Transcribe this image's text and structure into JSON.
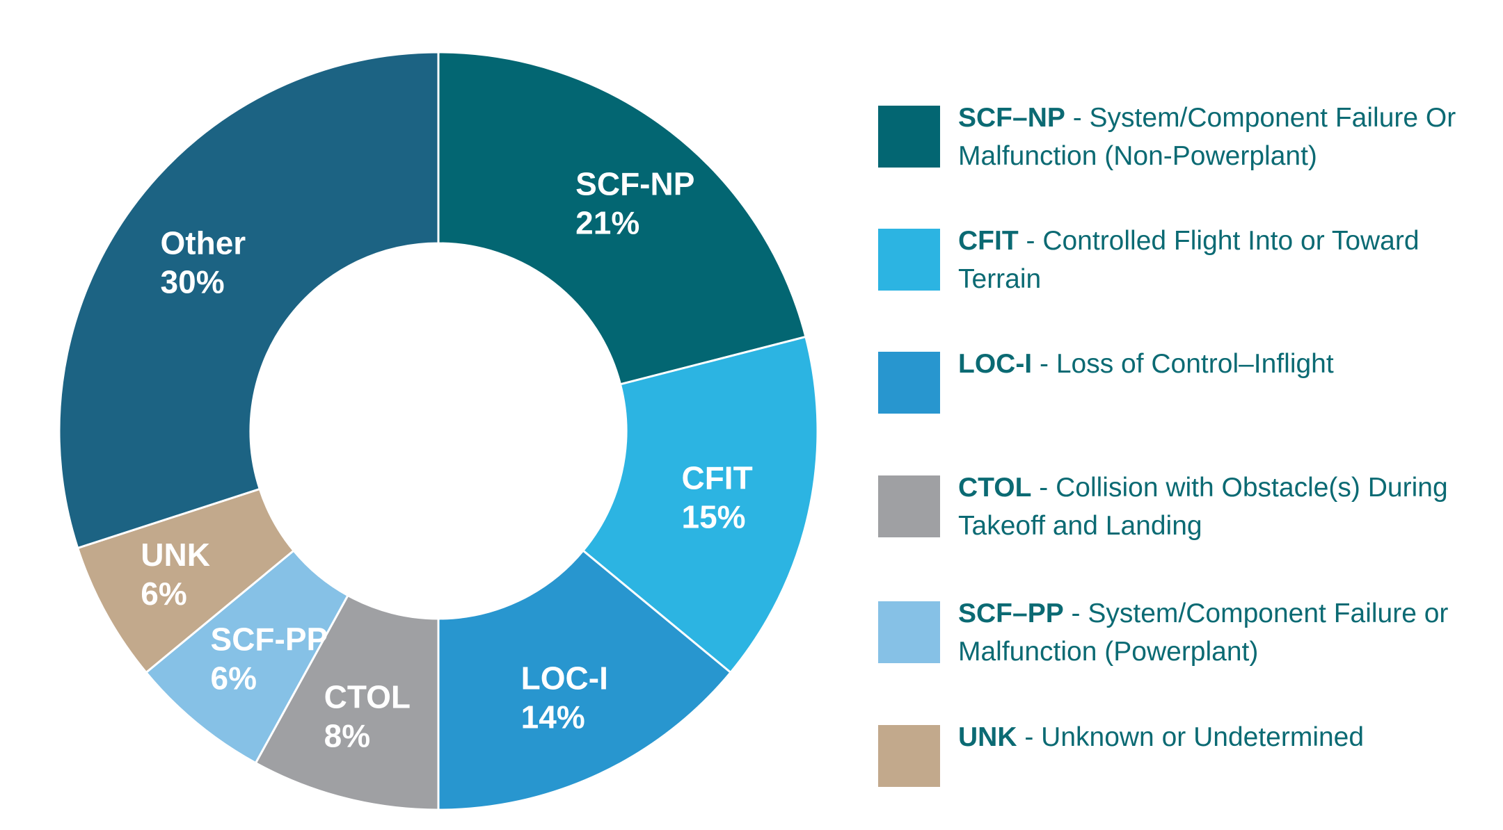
{
  "chart_data": {
    "type": "pie",
    "donut": true,
    "legend_position": "right",
    "slices": [
      {
        "code": "SCF-NP",
        "value": 21,
        "label": "21%",
        "color": "#036672",
        "legend_code": "SCF–NP",
        "legend_desc": " - System/Component Failure Or Malfunction (Non-Powerplant)"
      },
      {
        "code": "CFIT",
        "value": 15,
        "label": "15%",
        "color": "#2cb4e2",
        "legend_code": "CFIT",
        "legend_desc": " - Controlled Flight Into or Toward Terrain"
      },
      {
        "code": "LOC-I",
        "value": 14,
        "label": "14%",
        "color": "#2896cf",
        "legend_code": "LOC-I",
        "legend_desc": " - Loss of Control–Inflight"
      },
      {
        "code": "CTOL",
        "value": 8,
        "label": "8%",
        "color": "#9fa0a3",
        "legend_code": "CTOL",
        "legend_desc": " - Collision with Obstacle(s) During Takeoff and Landing"
      },
      {
        "code": "SCF-PP",
        "value": 6,
        "label": "6%",
        "color": "#86c1e6",
        "legend_code": "SCF–PP",
        "legend_desc": " - System/Component Failure or Malfunction (Powerplant)"
      },
      {
        "code": "UNK",
        "value": 6,
        "label": "6%",
        "color": "#c2a98c",
        "legend_code": "UNK",
        "legend_desc": " - Unknown or Undetermined"
      },
      {
        "code": "Other",
        "value": 30,
        "label": "30%",
        "color": "#1c6383",
        "legend_code": "",
        "legend_desc": ""
      }
    ]
  }
}
